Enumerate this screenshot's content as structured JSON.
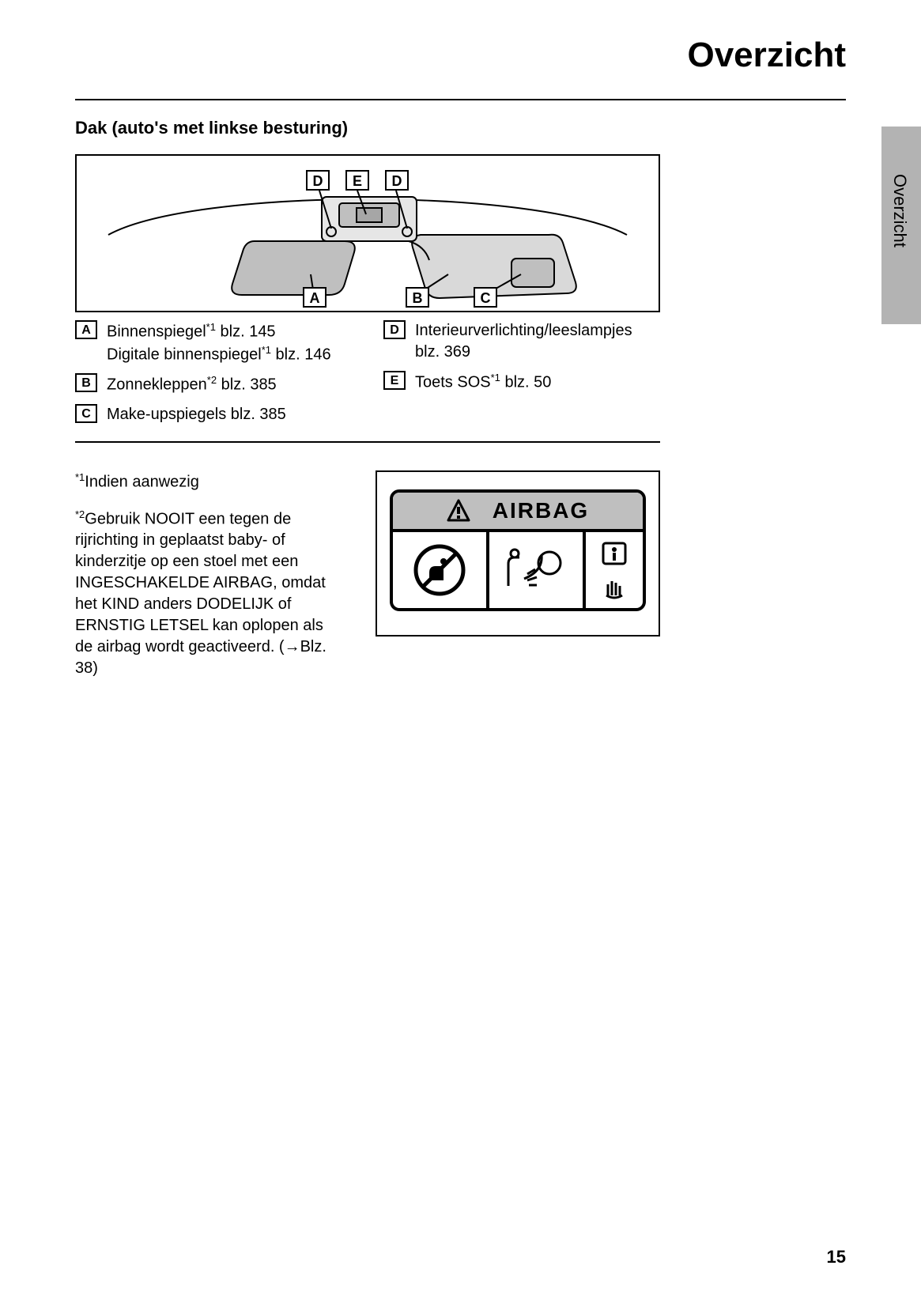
{
  "page_title": "Overzicht",
  "side_tab": "Overzicht",
  "section_heading": "Dak (auto's met linkse besturing)",
  "callouts_top": [
    "D",
    "E",
    "D"
  ],
  "callouts_bottom": [
    "A",
    "B",
    "C"
  ],
  "legend_left": [
    {
      "letter": "A",
      "html": "Binnenspiegel<sup class='sup'>*1</sup> blz. 145<br>Digitale binnenspiegel<sup class='sup'>*1</sup> blz. 146"
    },
    {
      "letter": "B",
      "html": "Zonnekleppen<sup class='sup'>*2</sup> blz. 385"
    },
    {
      "letter": "C",
      "html": "Make-upspiegels blz. 385"
    }
  ],
  "legend_right": [
    {
      "letter": "D",
      "html": "Interieurverlichting/leeslampjes<br>blz. 369"
    },
    {
      "letter": "E",
      "html": "Toets SOS<sup class='sup'>*1</sup> blz. 50"
    }
  ],
  "footnote1": "<sup class='sup'>*1</sup>Indien aanwezig",
  "footnote2": "<sup class='sup'>*2</sup>Gebruik NOOIT een tegen de rijrichting in geplaatst baby- of kinderzitje op een stoel met een INGESCHAKELDE AIRBAG, omdat het KIND anders DODELIJK of ERNSTIG LETSEL kan oplopen als de airbag wordt geactiveerd. (→Blz. 38)",
  "warning_label": "AIRBAG",
  "page_number": "15",
  "colors": {
    "tab_bg": "#b3b3b3",
    "warning_header_bg": "#bfbfbf",
    "text": "#000000",
    "bg": "#ffffff"
  }
}
